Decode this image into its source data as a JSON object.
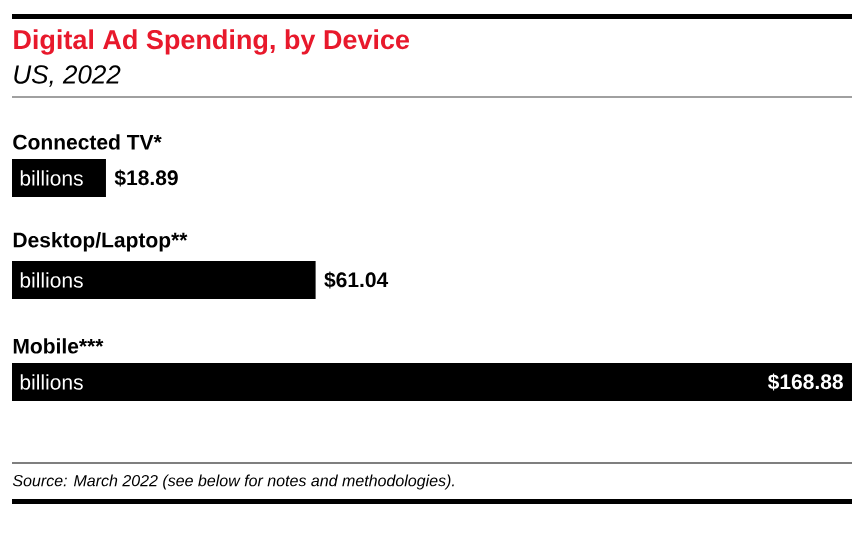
{
  "chart_data": {
    "type": "bar",
    "orientation": "horizontal",
    "title": "Digital Ad Spending, by Device",
    "subtitle": "US, 2022",
    "categories": [
      "Connected TV*",
      "Desktop/Laptop**",
      "Mobile***"
    ],
    "values": [
      18.89,
      61.04,
      168.88
    ],
    "value_labels": [
      "$18.89",
      "$61.04",
      "$168.88"
    ],
    "color": "#000000",
    "annotations": [
      "billions",
      "billions",
      "billions",
      "Source: March 2022 (see below for notes and methodologies)."
    ]
  }
}
